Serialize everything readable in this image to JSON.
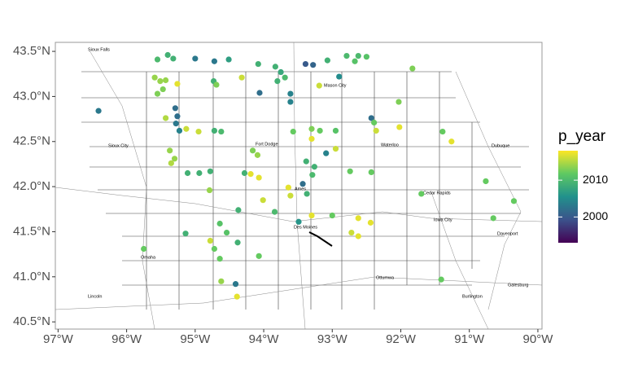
{
  "chart_data": {
    "type": "scatter",
    "color_title": "p_year",
    "xlim": [
      -97.04,
      -89.94
    ],
    "ylim": [
      40.42,
      43.6
    ],
    "xticks": [
      {
        "value": -97,
        "label": "97°W"
      },
      {
        "value": -96,
        "label": "96°W"
      },
      {
        "value": -95,
        "label": "95°W"
      },
      {
        "value": -94,
        "label": "94°W"
      },
      {
        "value": -93,
        "label": "93°W"
      },
      {
        "value": -92,
        "label": "92°W"
      },
      {
        "value": -91,
        "label": "91°W"
      },
      {
        "value": -90,
        "label": "90°W"
      }
    ],
    "yticks": [
      {
        "value": 40.5,
        "label": "40.5°N"
      },
      {
        "value": 41,
        "label": "41.0°N"
      },
      {
        "value": 41.5,
        "label": "41.5°N"
      },
      {
        "value": 42,
        "label": "42.0°N"
      },
      {
        "value": 42.5,
        "label": "42.5°N"
      },
      {
        "value": 43,
        "label": "43.0°N"
      },
      {
        "value": 43.5,
        "label": "43.5°N"
      }
    ],
    "colorlim": [
      1993,
      2018
    ],
    "colorticks": [
      2000,
      2010
    ],
    "cities": [
      "Sioux Falls",
      "Mason City",
      "Sioux City",
      "Fort Dodge",
      "Waterloo",
      "Dubuque",
      "Cedar Rapids",
      "Ames",
      "Iowa City",
      "Des Moines",
      "Davenport",
      "Omaha",
      "Ottumwa",
      "Galesburg",
      "Lincoln",
      "Burlington"
    ],
    "x": [
      -95.59,
      -95.51,
      -95.47,
      -95.55,
      -95.43,
      -95.26,
      -95.4,
      -95.32,
      -95.55,
      -95.0,
      -94.72,
      -94.51,
      -94.73,
      -94.69,
      -94.32,
      -94.08,
      -94.06,
      -93.83,
      -93.75,
      -93.69,
      -93.8,
      -93.39,
      -93.28,
      -93.61,
      -93.61,
      -93.19,
      -93.07,
      -92.67,
      -92.62,
      -92.5,
      -92.9,
      -92.79,
      -91.83,
      -92.03,
      -92.43,
      -92.39,
      -92.36,
      -92.02,
      -91.39,
      -91.26,
      -95.29,
      -95.26,
      -95.28,
      -95.23,
      -95.13,
      -95.43,
      -94.72,
      -94.62,
      -94.95,
      -93.57,
      -93.3,
      -93.18,
      -92.95,
      -96.41,
      -94.16,
      -94.09,
      -95.37,
      -95.3,
      -95.35,
      -93.3,
      -93.09,
      -92.95,
      -93.38,
      -93.26,
      -93.29,
      -92.74,
      -92.43,
      -95.11,
      -94.94,
      -94.78,
      -94.79,
      -94.28,
      -94.19,
      -94.07,
      -94.01,
      -93.64,
      -93.61,
      -93.43,
      -93.37,
      -91.7,
      -90.76,
      -90.35,
      -90.65,
      -94.37,
      -93.84,
      -93.49,
      -93.3,
      -93.0,
      -92.62,
      -92.44,
      -92.72,
      -92.62,
      -94.64,
      -94.54,
      -95.14,
      -94.78,
      -94.72,
      -94.64,
      -94.38,
      -94.07,
      -95.75,
      -94.62,
      -94.41,
      -94.39,
      -91.41
    ],
    "y": [
      43.21,
      43.17,
      43.08,
      43.03,
      43.18,
      43.14,
      43.46,
      43.42,
      43.41,
      43.42,
      43.39,
      43.41,
      43.17,
      43.13,
      43.21,
      43.36,
      43.04,
      43.33,
      43.27,
      43.21,
      43.17,
      43.36,
      43.35,
      43.03,
      42.94,
      43.12,
      43.4,
      43.39,
      43.45,
      43.44,
      43.22,
      43.45,
      43.31,
      42.94,
      42.76,
      42.71,
      42.62,
      42.66,
      42.61,
      42.5,
      42.87,
      42.78,
      42.7,
      42.62,
      42.64,
      42.76,
      42.62,
      42.61,
      42.61,
      42.61,
      42.64,
      42.62,
      42.62,
      42.84,
      42.4,
      42.35,
      42.4,
      42.31,
      42.26,
      42.53,
      42.37,
      42.42,
      42.28,
      42.22,
      42.13,
      42.17,
      42.16,
      42.15,
      42.15,
      42.17,
      41.96,
      42.15,
      42.14,
      42.1,
      41.85,
      41.99,
      41.9,
      42.03,
      41.92,
      41.92,
      42.06,
      41.84,
      41.65,
      41.74,
      41.72,
      41.61,
      41.68,
      41.68,
      41.65,
      41.6,
      41.49,
      41.45,
      41.59,
      41.49,
      41.48,
      41.4,
      41.31,
      41.2,
      41.38,
      41.23,
      41.31,
      40.95,
      40.92,
      40.78,
      40.97
    ],
    "color_values": [
      2014,
      2014,
      2013,
      2013,
      2014,
      2017,
      2009,
      2009,
      2010,
      2003,
      2003,
      2007,
      2009,
      2013,
      2016,
      2009,
      2002,
      2009,
      2008,
      2010,
      2009,
      2000,
      2001,
      2004,
      2004,
      2016,
      2009,
      2011,
      2010,
      2011,
      2005,
      2010,
      2013,
      2013,
      2002,
      2012,
      2016,
      2017,
      2012,
      2017,
      2002,
      2002,
      2003,
      2004,
      2016,
      2015,
      2009,
      2010,
      2016,
      2012,
      2013,
      2012,
      2011,
      2003,
      2013,
      2014,
      2014,
      2014,
      2015,
      2017,
      2004,
      2016,
      2009,
      2009,
      2010,
      2012,
      2012,
      2009,
      2009,
      2009,
      2014,
      2009,
      2017,
      2017,
      2016,
      2017,
      2016,
      2002,
      2009,
      2012,
      2012,
      2012,
      2012,
      2009,
      2010,
      2006,
      2017,
      2012,
      2017,
      2017,
      2016,
      2017,
      2011,
      2011,
      2009,
      2016,
      2012,
      2012,
      2009,
      2012,
      2012,
      2014,
      2003,
      2017,
      2012
    ]
  }
}
